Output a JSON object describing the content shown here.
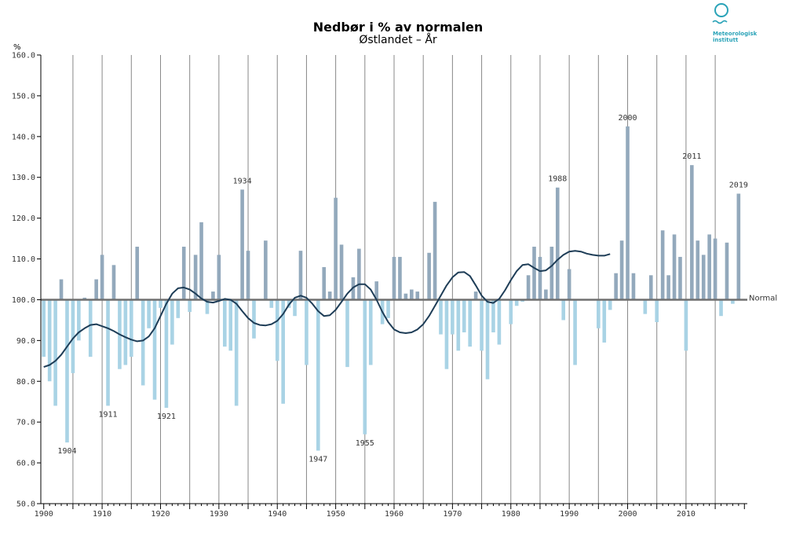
{
  "chart_data": {
    "type": "bar",
    "title": "Nedbør i % av normalen",
    "subtitle": "Østlandet – År",
    "ylabel": "%",
    "xlabel": "",
    "normal_label": "Normal",
    "baseline": 100,
    "ylim": [
      50,
      160
    ],
    "xlim": [
      1899.5,
      2020.5
    ],
    "y_ticks": [
      "50.0",
      "60.0",
      "70.0",
      "80.0",
      "90.0",
      "100.0",
      "110.0",
      "120.0",
      "130.0",
      "140.0",
      "150.0",
      "160.0"
    ],
    "x_ticks": [
      "1900",
      "1910",
      "1920",
      "1930",
      "1940",
      "1950",
      "1960",
      "1970",
      "1980",
      "1990",
      "2000",
      "2010"
    ],
    "grid": "vertical",
    "colors": {
      "above": "#93a9bc",
      "below": "#a9d3e5",
      "trend": "#1e3d57",
      "baseline": "#707070",
      "grid": "#888888",
      "logo": "#2aa3b8"
    },
    "years": [
      1900,
      1901,
      1902,
      1903,
      1904,
      1905,
      1906,
      1907,
      1908,
      1909,
      1910,
      1911,
      1912,
      1913,
      1914,
      1915,
      1916,
      1917,
      1918,
      1919,
      1920,
      1921,
      1922,
      1923,
      1924,
      1925,
      1926,
      1927,
      1928,
      1929,
      1930,
      1931,
      1932,
      1933,
      1934,
      1935,
      1936,
      1937,
      1938,
      1939,
      1940,
      1941,
      1942,
      1943,
      1944,
      1945,
      1946,
      1947,
      1948,
      1949,
      1950,
      1951,
      1952,
      1953,
      1954,
      1955,
      1956,
      1957,
      1958,
      1959,
      1960,
      1961,
      1962,
      1963,
      1964,
      1965,
      1966,
      1967,
      1968,
      1969,
      1970,
      1971,
      1972,
      1973,
      1974,
      1975,
      1976,
      1977,
      1978,
      1979,
      1980,
      1981,
      1982,
      1983,
      1984,
      1985,
      1986,
      1987,
      1988,
      1989,
      1990,
      1991,
      1992,
      1993,
      1994,
      1995,
      1996,
      1997,
      1998,
      1999,
      2000,
      2001,
      2002,
      2003,
      2004,
      2005,
      2006,
      2007,
      2008,
      2009,
      2010,
      2011,
      2012,
      2013,
      2014,
      2015,
      2016,
      2017,
      2018,
      2019
    ],
    "values": [
      86,
      80,
      74,
      105,
      65,
      82,
      90,
      100.5,
      86,
      105,
      111,
      74,
      108.5,
      83,
      84,
      86,
      113,
      79,
      93,
      75.5,
      98,
      73.5,
      89,
      95.5,
      113,
      97,
      111,
      119,
      96.5,
      102,
      111,
      88.5,
      87.5,
      74,
      127,
      112,
      90.5,
      100,
      114.5,
      98,
      85,
      74.5,
      98,
      96,
      112,
      84,
      100,
      63,
      108,
      102,
      125,
      113.5,
      83.5,
      105.5,
      112.5,
      67,
      84,
      104.5,
      94,
      95.5,
      110.5,
      110.5,
      101.5,
      102.5,
      102,
      100,
      111.5,
      124,
      91.5,
      83,
      91.5,
      87.5,
      92,
      88.5,
      102,
      87.5,
      80.5,
      92,
      89,
      100,
      94,
      98.5,
      99.5,
      106,
      113,
      110.5,
      102.5,
      113,
      127.5,
      95,
      107.5,
      84,
      100,
      100,
      100,
      93,
      89.5,
      97.5,
      106.5,
      114.5,
      142.5,
      106.5,
      100,
      96.5,
      106,
      94.5,
      117,
      106,
      116,
      110.5,
      87.5,
      133,
      114.5,
      111,
      116,
      115,
      96,
      114,
      99,
      126
    ],
    "trend": [
      83.5,
      84,
      85,
      86.5,
      88.5,
      90.5,
      92,
      93,
      93.8,
      94,
      93.5,
      93,
      92.3,
      91.5,
      90.8,
      90.2,
      89.8,
      90,
      91,
      93,
      96,
      99,
      101.5,
      102.8,
      103,
      102.5,
      101.5,
      100.3,
      99.5,
      99.3,
      99.7,
      100.2,
      100,
      99,
      97.2,
      95.5,
      94.3,
      93.8,
      93.7,
      94,
      94.8,
      96.5,
      98.8,
      100.5,
      101,
      100.5,
      99,
      97.2,
      96,
      96.2,
      97.5,
      99.5,
      101.5,
      103,
      103.8,
      103.8,
      102.5,
      100,
      97,
      94.5,
      92.7,
      92,
      91.8,
      92,
      92.7,
      94,
      96,
      98.5,
      101,
      103.5,
      105.5,
      106.7,
      106.8,
      105.8,
      103.5,
      101,
      99.5,
      99.2,
      100.2,
      102.3,
      104.8,
      107,
      108.5,
      108.7,
      107.8,
      107,
      107.2,
      108.3,
      109.8,
      111,
      111.8,
      112,
      111.8,
      111.3,
      111,
      110.8,
      110.8,
      111.2
    ],
    "bar_labels": [
      {
        "year": 1904,
        "text": "1904"
      },
      {
        "year": 1911,
        "text": "1911"
      },
      {
        "year": 1921,
        "text": "1921"
      },
      {
        "year": 1934,
        "text": "1934"
      },
      {
        "year": 1947,
        "text": "1947"
      },
      {
        "year": 1955,
        "text": "1955"
      },
      {
        "year": 1988,
        "text": "1988"
      },
      {
        "year": 2000,
        "text": "2000"
      },
      {
        "year": 2011,
        "text": "2011"
      },
      {
        "year": 2019,
        "text": "2019"
      }
    ]
  },
  "logo": {
    "name": "Meteorologisk institutt",
    "line1": "Meteorologisk",
    "line2": "institutt"
  }
}
